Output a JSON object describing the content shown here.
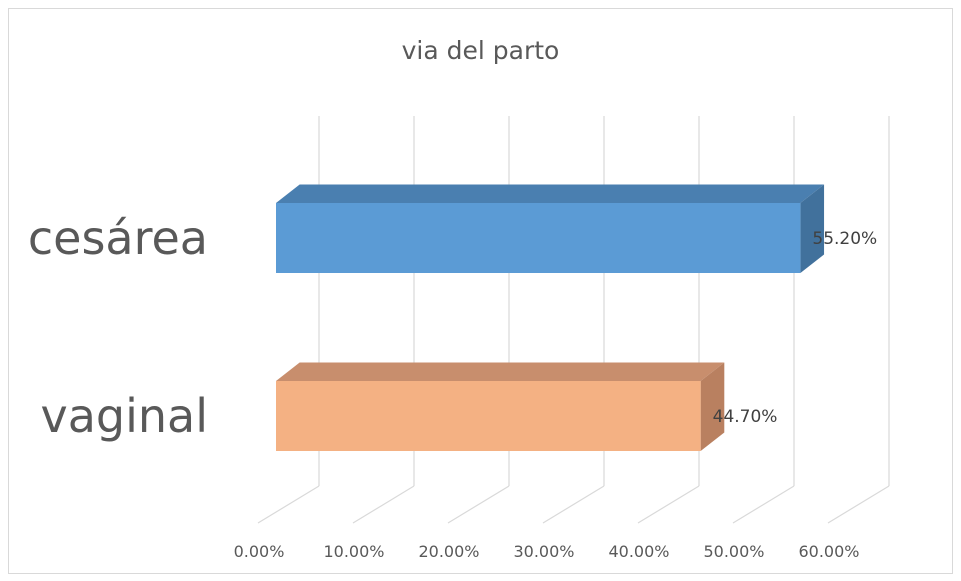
{
  "chart_data": {
    "type": "bar",
    "orientation": "horizontal",
    "style": "3d",
    "title": "via del parto",
    "categories": [
      "cesárea",
      "vaginal"
    ],
    "values": [
      55.2,
      44.7
    ],
    "data_labels": [
      "55.20%",
      "44.70%"
    ],
    "colors": [
      "#5b9bd5",
      "#f4b183"
    ],
    "side_colors": [
      "#41719c",
      "#b98060"
    ],
    "top_colors": [
      "#4a7fb0",
      "#c88e6d"
    ],
    "xlim": [
      0,
      60
    ],
    "xticks": [
      "0.00%",
      "10.00%",
      "20.00%",
      "30.00%",
      "40.00%",
      "50.00%",
      "60.00%"
    ],
    "grid": true,
    "legend": "none"
  }
}
